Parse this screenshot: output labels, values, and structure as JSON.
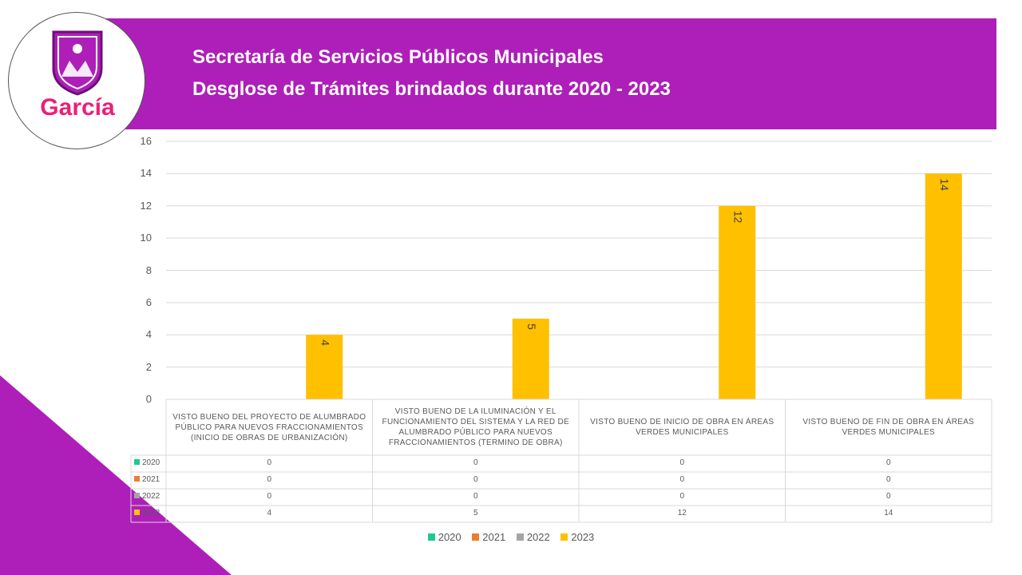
{
  "header": {
    "line1": "Secretaría de Servicios Públicos Municipales",
    "line2": "Desglose de Trámites brindados durante 2020 - 2023"
  },
  "logo": {
    "text": "García",
    "icon": "municipal-shield-icon"
  },
  "colors": {
    "banner": "#ad1fb8",
    "2020": "#1fc98a",
    "2021": "#ed7d31",
    "2022": "#a5a5a5",
    "2023": "#ffc000"
  },
  "chart_data": {
    "type": "bar",
    "categories": [
      "VISTO BUENO DEL PROYECTO DE ALUMBRADO PÚBLICO PARA NUEVOS FRACCIONAMIENTOS (INICIO DE OBRAS DE URBANIZACIÓN)",
      "VISTO BUENO DE LA ILUMINACIÓN Y EL FUNCIONAMIENTO DEL SISTEMA Y LA RED DE ALUMBRADO PÚBLICO PARA NUEVOS FRACCIONAMIENTOS (TERMINO DE OBRA)",
      "VISTO BUENO DE INICIO DE OBRA EN ÁREAS VERDES MUNICIPALES",
      "VISTO BUENO DE FIN DE OBRA EN ÁREAS VERDES MUNICIPALES"
    ],
    "series": [
      {
        "name": "2020",
        "values": [
          0,
          0,
          0,
          0
        ]
      },
      {
        "name": "2021",
        "values": [
          0,
          0,
          0,
          0
        ]
      },
      {
        "name": "2022",
        "values": [
          0,
          0,
          0,
          0
        ]
      },
      {
        "name": "2023",
        "values": [
          4,
          5,
          12,
          14
        ]
      }
    ],
    "yticks": [
      "0",
      "2",
      "4",
      "6",
      "8",
      "10",
      "12",
      "14",
      "16"
    ],
    "ylim": [
      0,
      16
    ],
    "grid": true,
    "legend": "bottom",
    "data_table": true
  }
}
